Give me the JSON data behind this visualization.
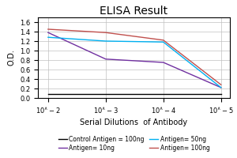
{
  "title": "ELISA Result",
  "xlabel": "Serial Dilutions  of Antibody",
  "ylabel": "O.D.",
  "x_values": [
    0.01,
    0.001,
    0.0001,
    1e-05
  ],
  "lines": [
    {
      "label": "Control Antigen = 100ng",
      "color": "#000000",
      "y": [
        0.08,
        0.08,
        0.08,
        0.08
      ]
    },
    {
      "label": "Antigen= 10ng",
      "color": "#7030a0",
      "y": [
        1.38,
        0.82,
        0.75,
        0.22
      ]
    },
    {
      "label": "Antigen= 50ng",
      "color": "#00b0f0",
      "y": [
        1.28,
        1.2,
        1.18,
        0.22
      ]
    },
    {
      "label": "Antigen= 100ng",
      "color": "#c0504d",
      "y": [
        1.45,
        1.38,
        1.22,
        0.28
      ]
    }
  ],
  "ylim": [
    0,
    1.7
  ],
  "yticks": [
    0,
    0.2,
    0.4,
    0.6,
    0.8,
    1.0,
    1.2,
    1.4,
    1.6
  ],
  "xlim_left": 0.015,
  "xlim_right": 7e-06,
  "background_color": "#ffffff",
  "title_fontsize": 10,
  "axis_label_fontsize": 7,
  "tick_fontsize": 6,
  "legend_fontsize": 5.5
}
